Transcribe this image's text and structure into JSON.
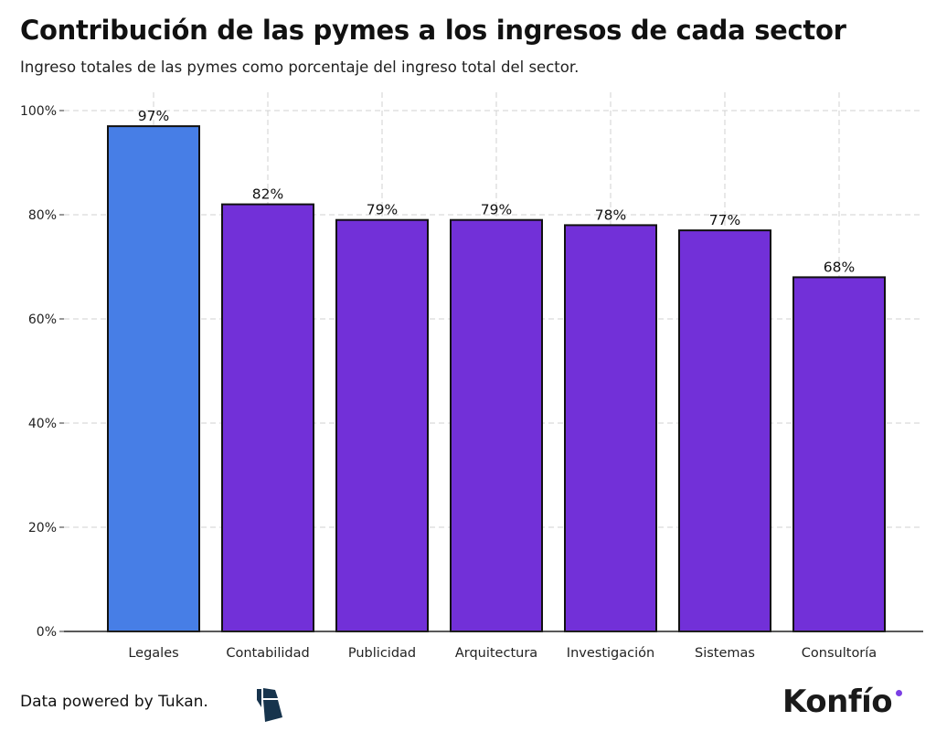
{
  "chart_data": {
    "type": "bar",
    "title": "Contribución de las pymes a los ingresos de cada sector",
    "subtitle": "Ingreso totales de las pymes como porcentaje del ingreso total del sector.",
    "categories": [
      "Legales",
      "Contabilidad",
      "Publicidad",
      "Arquitectura",
      "Investigación",
      "Sistemas",
      "Consultoría"
    ],
    "values": [
      97,
      82,
      79,
      79,
      78,
      77,
      68
    ],
    "data_labels": [
      "97%",
      "82%",
      "79%",
      "79%",
      "78%",
      "77%",
      "68%"
    ],
    "ylim": [
      0,
      100
    ],
    "yticks": [
      0,
      20,
      40,
      60,
      80,
      100
    ],
    "ytick_labels": [
      "0%",
      "20%",
      "40%",
      "60%",
      "80%",
      "100%"
    ],
    "grid": true,
    "colors": {
      "highlight": "#477EE6",
      "default": "#7230D8",
      "highlight_category": "Legales"
    }
  },
  "footer": {
    "source": "Data powered by Tukan.",
    "brand": "Konfío",
    "brand_dot_color": "#7B3FE4"
  }
}
